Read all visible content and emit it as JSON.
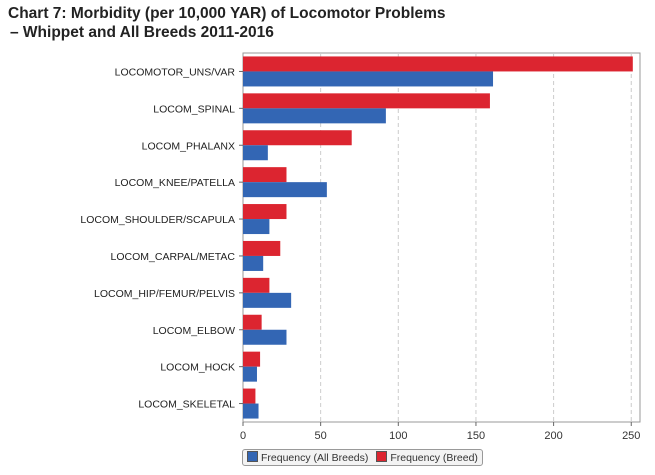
{
  "chart_data": {
    "type": "bar",
    "orientation": "horizontal",
    "title": "Chart 7: Morbidity (per 10,000 YAR) of Locomotor Problems",
    "subtitle": "–  Whippet and All Breeds 2011-2016",
    "categories": [
      "LOCOMOTOR_UNS/VAR",
      "LOCOM_SPINAL",
      "LOCOM_PHALANX",
      "LOCOM_KNEE/PATELLA",
      "LOCOM_SHOULDER/SCAPULA",
      "LOCOM_CARPAL/METAC",
      "LOCOM_HIP/FEMUR/PELVIS",
      "LOCOM_ELBOW",
      "LOCOM_HOCK",
      "LOCOM_SKELETAL"
    ],
    "series": [
      {
        "name": "Frequency (All Breeds)",
        "color": "#3366b4",
        "values": [
          161,
          92,
          16,
          54,
          17,
          13,
          31,
          28,
          9,
          10
        ]
      },
      {
        "name": "Frequency (Breed)",
        "color": "#dc2530",
        "values": [
          251,
          159,
          70,
          28,
          28,
          24,
          17,
          12,
          11,
          8
        ]
      }
    ],
    "xlim": [
      0,
      255
    ],
    "xticks": [
      0,
      50,
      100,
      150,
      200,
      250
    ],
    "grid": true,
    "legend": "bottom"
  }
}
